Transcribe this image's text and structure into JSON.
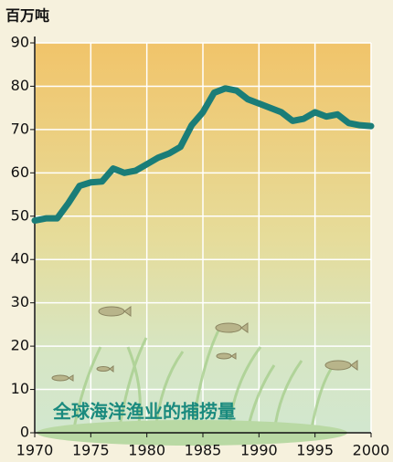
{
  "chart_data": {
    "type": "line",
    "y_label": "百万吨",
    "title": "全球海洋渔业的捕捞量",
    "x": [
      1970,
      1971,
      1972,
      1973,
      1974,
      1975,
      1976,
      1977,
      1978,
      1979,
      1980,
      1981,
      1982,
      1983,
      1984,
      1985,
      1986,
      1987,
      1988,
      1989,
      1990,
      1991,
      1992,
      1993,
      1994,
      1995,
      1996,
      1997,
      1998,
      1999,
      2000
    ],
    "series": [
      {
        "name": "全球海洋渔业的捕捞量",
        "color": "#1a7d78",
        "values": [
          49,
          49.5,
          49.5,
          53,
          57,
          57.8,
          58,
          61,
          60,
          60.5,
          62,
          63.5,
          64.5,
          66,
          71,
          74,
          78.5,
          79.5,
          79,
          77,
          76,
          75,
          74,
          72,
          72.5,
          74,
          73,
          73.5,
          71.5,
          71,
          70.8
        ]
      }
    ],
    "xlim": [
      1970,
      2000
    ],
    "xticks": [
      1970,
      1975,
      1980,
      1985,
      1990,
      1995,
      2000
    ],
    "ylim": [
      0,
      90
    ],
    "yticks": [
      0,
      10,
      20,
      30,
      40,
      50,
      60,
      70,
      80,
      90
    ],
    "grid": true
  }
}
